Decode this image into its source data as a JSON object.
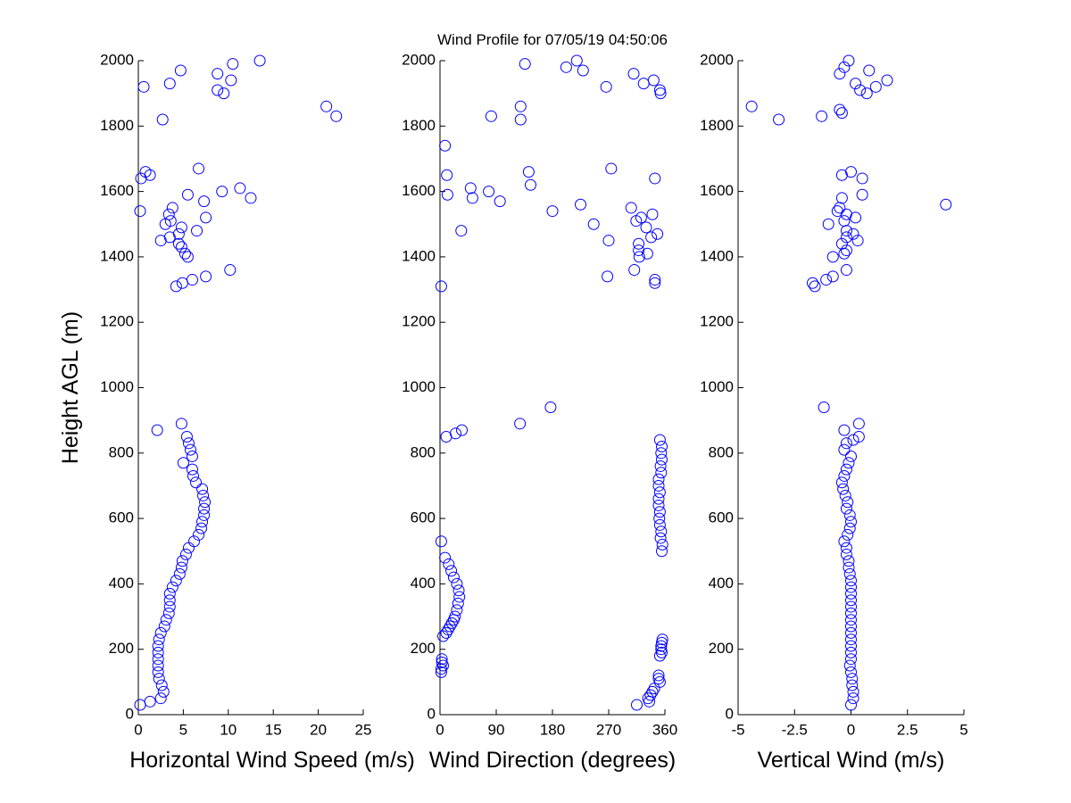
{
  "chart_data": [
    {
      "type": "scatter",
      "ylabel": "Height AGL (m)",
      "xlabel": "Horizontal Wind Speed (m/s)",
      "color": "#0000ff",
      "xlim": [
        0,
        25
      ],
      "xticks": [
        0,
        5,
        10,
        15,
        20,
        25
      ],
      "ylim": [
        0,
        2000
      ],
      "yticks": [
        0,
        200,
        400,
        600,
        800,
        1000,
        1200,
        1400,
        1600,
        1800,
        2000
      ],
      "x": [
        0.2,
        1.3,
        2.5,
        2.8,
        2.6,
        2.3,
        2.2,
        2.2,
        2.2,
        2.2,
        2.2,
        2.3,
        2.5,
        2.9,
        3.1,
        3.4,
        3.5,
        3.5,
        3.5,
        3.8,
        4.2,
        4.6,
        4.8,
        4.9,
        5.3,
        5.6,
        6.2,
        6.7,
        7.0,
        7.1,
        7.3,
        7.3,
        7.4,
        7.2,
        7.1,
        6.4,
        6.1,
        6.0,
        5.0,
        6.0,
        5.8,
        5.6,
        5.4,
        2.1,
        4.8,
        0.2,
        0.3,
        0.8,
        1.3,
        4.2,
        4.9,
        6.0,
        7.5,
        10.2,
        5.5,
        5.2,
        4.8,
        4.5,
        2.5,
        3.5,
        4.5,
        6.5,
        4.8,
        3.0,
        3.6,
        7.5,
        3.4,
        3.8,
        7.3,
        12.5,
        5.5,
        9.3,
        11.3,
        6.7,
        2.7,
        22.0,
        20.9,
        9.5,
        8.8,
        0.6,
        3.5,
        10.3,
        8.8,
        4.7,
        10.5,
        13.5
      ],
      "y": [
        30,
        40,
        50,
        70,
        90,
        110,
        130,
        150,
        170,
        190,
        210,
        230,
        250,
        270,
        290,
        310,
        330,
        350,
        370,
        390,
        410,
        430,
        450,
        470,
        490,
        510,
        530,
        550,
        570,
        590,
        610,
        630,
        650,
        670,
        690,
        710,
        730,
        750,
        770,
        790,
        810,
        830,
        850,
        870,
        890,
        1540,
        1640,
        1660,
        1650,
        1310,
        1320,
        1330,
        1340,
        1360,
        1400,
        1410,
        1430,
        1440,
        1450,
        1460,
        1470,
        1480,
        1490,
        1500,
        1510,
        1520,
        1530,
        1550,
        1570,
        1580,
        1590,
        1600,
        1610,
        1670,
        1820,
        1830,
        1860,
        1900,
        1910,
        1920,
        1930,
        1940,
        1960,
        1970,
        1990,
        2000
      ]
    },
    {
      "type": "scatter",
      "title": "Wind Profile for  07/05/19 04:50:06",
      "xlabel": "Wind Direction (degrees)",
      "color": "#0000ff",
      "xlim": [
        0,
        360
      ],
      "xticks": [
        0,
        90,
        180,
        270,
        360
      ],
      "ylim": [
        0,
        2000
      ],
      "yticks": [
        0,
        200,
        400,
        600,
        800,
        1000,
        1200,
        1400,
        1600,
        1800,
        2000
      ],
      "x": [
        315,
        335,
        333,
        337,
        340,
        343,
        352,
        350,
        350,
        2,
        2,
        5,
        3,
        3,
        352,
        355,
        354,
        354,
        355,
        356,
        5,
        10,
        13,
        16,
        19,
        22,
        24,
        27,
        29,
        31,
        30,
        27,
        22,
        18,
        14,
        8,
        355,
        356,
        2,
        353,
        354,
        352,
        351,
        352,
        350,
        350,
        352,
        350,
        350,
        354,
        353,
        355,
        354,
        355,
        352,
        10,
        25,
        35,
        128,
        177,
        2,
        8,
        11,
        12,
        34,
        49,
        52,
        78,
        82,
        96,
        129,
        129,
        136,
        142,
        145,
        180,
        202,
        219,
        225,
        229,
        246,
        266,
        268,
        270,
        274,
        306,
        310,
        311,
        314,
        318,
        318,
        319,
        322,
        326,
        330,
        332,
        338,
        342,
        340,
        344,
        344,
        344,
        348,
        352,
        353
      ],
      "y": [
        30,
        40,
        50,
        60,
        70,
        80,
        100,
        110,
        120,
        130,
        140,
        150,
        160,
        170,
        180,
        190,
        200,
        210,
        220,
        230,
        240,
        250,
        260,
        270,
        280,
        290,
        300,
        320,
        340,
        360,
        380,
        400,
        420,
        440,
        460,
        480,
        500,
        520,
        530,
        540,
        560,
        580,
        600,
        620,
        640,
        660,
        680,
        700,
        720,
        740,
        760,
        780,
        800,
        820,
        840,
        850,
        860,
        870,
        890,
        940,
        1310,
        1740,
        1650,
        1590,
        1480,
        1610,
        1580,
        1600,
        1830,
        1570,
        1860,
        1820,
        1990,
        1660,
        1620,
        1540,
        1980,
        2000,
        1560,
        1970,
        1500,
        1920,
        1340,
        1450,
        1670,
        1550,
        1960,
        1360,
        1510,
        1420,
        1440,
        1400,
        1520,
        1930,
        1490,
        1410,
        1460,
        1940,
        1530,
        1640,
        1320,
        1330,
        1470,
        1910,
        1900
      ]
    },
    {
      "type": "scatter",
      "xlabel": "Vertical Wind (m/s)",
      "color": "#0000ff",
      "xlim": [
        -5,
        5
      ],
      "xticks": [
        -5,
        -2.5,
        0,
        2.5,
        5
      ],
      "ylim": [
        0,
        2000
      ],
      "yticks": [
        0,
        200,
        400,
        600,
        800,
        1000,
        1200,
        1400,
        1600,
        1800,
        2000
      ],
      "x": [
        0,
        0.1,
        0.1,
        0.05,
        0.05,
        0,
        -0.05,
        0,
        0,
        0,
        0,
        0,
        0,
        0,
        0,
        0,
        0,
        0,
        0,
        0,
        -0.05,
        -0.1,
        -0.1,
        -0.2,
        -0.2,
        -0.3,
        -0.15,
        -0.05,
        0,
        -0.05,
        -0.2,
        -0.15,
        -0.25,
        -0.35,
        -0.4,
        -0.3,
        -0.2,
        -0.1,
        0,
        -0.3,
        -0.2,
        0.35,
        0.1,
        -0.3,
        0.35,
        -1.2,
        -4.4,
        -3.2,
        -1.3,
        -0.5,
        -0.4,
        -0.5,
        -0.3,
        -0.1,
        0.2,
        0.4,
        0.8,
        0.7,
        1.1,
        1.6,
        -1.7,
        -1.6,
        -1.1,
        -0.8,
        -0.2,
        -0.8,
        -0.3,
        -0.2,
        -0.4,
        -0.2,
        0.1,
        0.3,
        -0.2,
        -1.0,
        -0.3,
        0.2,
        -0.2,
        -0.6,
        -0.5,
        -0.4,
        0.5,
        0.0,
        -0.4,
        0.5,
        4.2
      ],
      "y": [
        30,
        50,
        70,
        90,
        110,
        130,
        150,
        170,
        190,
        210,
        230,
        250,
        270,
        290,
        310,
        330,
        350,
        370,
        390,
        410,
        430,
        450,
        470,
        490,
        510,
        530,
        550,
        570,
        590,
        610,
        630,
        650,
        670,
        690,
        710,
        730,
        750,
        770,
        790,
        810,
        830,
        850,
        840,
        870,
        890,
        940,
        1860,
        1820,
        1830,
        1850,
        1840,
        1960,
        1980,
        2000,
        1930,
        1910,
        1970,
        1900,
        1920,
        1940,
        1320,
        1310,
        1330,
        1340,
        1360,
        1400,
        1410,
        1420,
        1440,
        1460,
        1470,
        1450,
        1480,
        1500,
        1510,
        1520,
        1530,
        1540,
        1550,
        1580,
        1590,
        1660,
        1650,
        1640,
        1560
      ]
    }
  ]
}
